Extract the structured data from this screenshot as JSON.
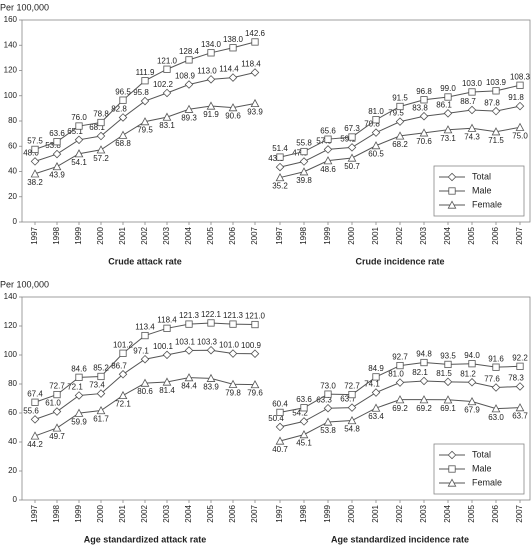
{
  "chart_data": [
    {
      "type": "line",
      "title": "Crude attack rate",
      "y_label": "Per 100,000",
      "categories": [
        "1997",
        "1998",
        "1999",
        "2000",
        "2001",
        "2002",
        "2003",
        "2004",
        "2005",
        "2006",
        "2007"
      ],
      "ylim": [
        0,
        160
      ],
      "yticks": [
        0,
        20,
        40,
        60,
        80,
        100,
        120,
        140,
        160
      ],
      "series": [
        {
          "marker": "diamond",
          "color": "#555555",
          "values": [
            48.0,
            53.8,
            65.1,
            68.1,
            82.8,
            95.8,
            102.2,
            108.9,
            113.0,
            114.4,
            118.4
          ],
          "value_labels": [
            "48.0",
            "53.8",
            "65.1",
            "68.1",
            "82.8",
            "95.8",
            "102.2",
            "108.9",
            "113.0",
            "114.4",
            "118.4"
          ]
        },
        {
          "marker": "square",
          "color": "#555555",
          "values": [
            57.5,
            63.6,
            76.0,
            78.8,
            96.5,
            111.9,
            121.0,
            128.4,
            134.0,
            138.0,
            142.6
          ],
          "value_labels": [
            "57.5",
            "63.6",
            "76.0",
            "78.8",
            "96.5",
            "111.9",
            "121.0",
            "128.4",
            "134.0",
            "138.0",
            "142.6"
          ]
        },
        {
          "marker": "triangle",
          "color": "#555555",
          "values": [
            38.2,
            43.9,
            54.1,
            57.2,
            68.8,
            79.5,
            83.1,
            89.3,
            91.9,
            90.6,
            93.9
          ],
          "value_labels": [
            "38.2",
            "43.9",
            "54.1",
            "57.2",
            "68.8",
            "79.5",
            "83.1",
            "89.3",
            "91.9",
            "90.6",
            "93.9"
          ]
        }
      ]
    },
    {
      "type": "line",
      "title": "Crude incidence rate",
      "categories": [
        "1997",
        "1998",
        "1999",
        "2000",
        "2001",
        "2002",
        "2003",
        "2004",
        "2005",
        "2006",
        "2007"
      ],
      "ylim": [
        0,
        160
      ],
      "legend": "lower right",
      "series": [
        {
          "name": "Total",
          "marker": "diamond",
          "color": "#555555",
          "values": [
            43.5,
            47.9,
            57.5,
            59.1,
            70.8,
            79.5,
            83.8,
            86.1,
            88.7,
            87.8,
            91.8
          ],
          "value_labels": [
            "43.5",
            "47.9",
            "57.5",
            "59.1",
            "70.8",
            "79.5",
            "83.8",
            "86.1",
            "88.7",
            "87.8",
            "91.8"
          ]
        },
        {
          "name": "Male",
          "marker": "square",
          "color": "#555555",
          "values": [
            51.4,
            55.8,
            65.6,
            67.3,
            81.0,
            91.5,
            96.8,
            99.0,
            103.0,
            103.9,
            108.3
          ],
          "value_labels": [
            "51.4",
            "55.8",
            "65.6",
            "67.3",
            "81.0",
            "91.5",
            "96.8",
            "99.0",
            "103.0",
            "103.9",
            "108.3"
          ]
        },
        {
          "name": "Female",
          "marker": "triangle",
          "color": "#555555",
          "values": [
            35.2,
            39.8,
            48.6,
            50.7,
            60.5,
            68.2,
            70.6,
            73.1,
            74.3,
            71.5,
            75.0
          ],
          "value_labels": [
            "35.2",
            "39.8",
            "48.6",
            "50.7",
            "60.5",
            "68.2",
            "70.6",
            "73.1",
            "74.3",
            "71.5",
            "75.0"
          ]
        }
      ]
    },
    {
      "type": "line",
      "title": "Age standardized attack rate",
      "y_label": "Per 100,000",
      "categories": [
        "1997",
        "1998",
        "1999",
        "2000",
        "2001",
        "2002",
        "2003",
        "2004",
        "2005",
        "2006",
        "2007"
      ],
      "ylim": [
        0,
        140
      ],
      "yticks": [
        0,
        20,
        40,
        60,
        80,
        100,
        120,
        140
      ],
      "series": [
        {
          "marker": "diamond",
          "color": "#555555",
          "values": [
            55.6,
            61.0,
            72.1,
            73.4,
            86.7,
            97.1,
            100.1,
            103.1,
            103.3,
            101.0,
            100.9
          ],
          "value_labels": [
            "55.6",
            "61.0",
            "72.1",
            "73.4",
            "86.7",
            "97.1",
            "100.1",
            "103.1",
            "103.3",
            "101.0",
            "100.9"
          ]
        },
        {
          "marker": "square",
          "color": "#555555",
          "values": [
            67.4,
            72.7,
            84.6,
            85.2,
            101.2,
            113.4,
            118.4,
            121.3,
            122.1,
            121.3,
            121.0
          ],
          "value_labels": [
            "67.4",
            "72.7",
            "84.6",
            "85.2",
            "101.2",
            "113.4",
            "118.4",
            "121.3",
            "122.1",
            "121.3",
            "121.0"
          ]
        },
        {
          "marker": "triangle",
          "color": "#555555",
          "values": [
            44.2,
            49.7,
            59.9,
            61.7,
            72.1,
            80.6,
            81.4,
            84.4,
            83.9,
            79.8,
            79.6
          ],
          "value_labels": [
            "44.2",
            "49.7",
            "59.9",
            "61.7",
            "72.1",
            "80.6",
            "81.4",
            "84.4",
            "83.9",
            "79.8",
            "79.6"
          ]
        }
      ]
    },
    {
      "type": "line",
      "title": "Age standardized incidence rate",
      "categories": [
        "1997",
        "1998",
        "1999",
        "2000",
        "2001",
        "2002",
        "2003",
        "2004",
        "2005",
        "2006",
        "2007"
      ],
      "ylim": [
        0,
        140
      ],
      "legend": "lower right",
      "series": [
        {
          "name": "Total",
          "marker": "diamond",
          "color": "#555555",
          "values": [
            50.4,
            54.2,
            63.3,
            63.7,
            74.1,
            81.0,
            82.1,
            81.5,
            81.2,
            77.6,
            78.3
          ],
          "value_labels": [
            "50.4",
            "54.2",
            "63.3",
            "63.7",
            "74.1",
            "81.0",
            "82.1",
            "81.5",
            "81.2",
            "77.6",
            "78.3"
          ]
        },
        {
          "name": "Male",
          "marker": "square",
          "color": "#555555",
          "values": [
            60.4,
            63.6,
            73.0,
            72.7,
            84.9,
            92.7,
            94.8,
            93.5,
            94.0,
            91.6,
            92.2
          ],
          "value_labels": [
            "60.4",
            "63.6",
            "73.0",
            "72.7",
            "84.9",
            "92.7",
            "94.8",
            "93.5",
            "94.0",
            "91.6",
            "92.2"
          ]
        },
        {
          "name": "Female",
          "marker": "triangle",
          "color": "#555555",
          "values": [
            40.7,
            45.1,
            53.8,
            54.8,
            63.4,
            69.2,
            69.2,
            69.1,
            67.9,
            63.0,
            63.7
          ],
          "value_labels": [
            "40.7",
            "45.1",
            "53.8",
            "54.8",
            "63.4",
            "69.2",
            "69.2",
            "69.1",
            "67.9",
            "63.0",
            "63.7"
          ]
        }
      ]
    }
  ]
}
